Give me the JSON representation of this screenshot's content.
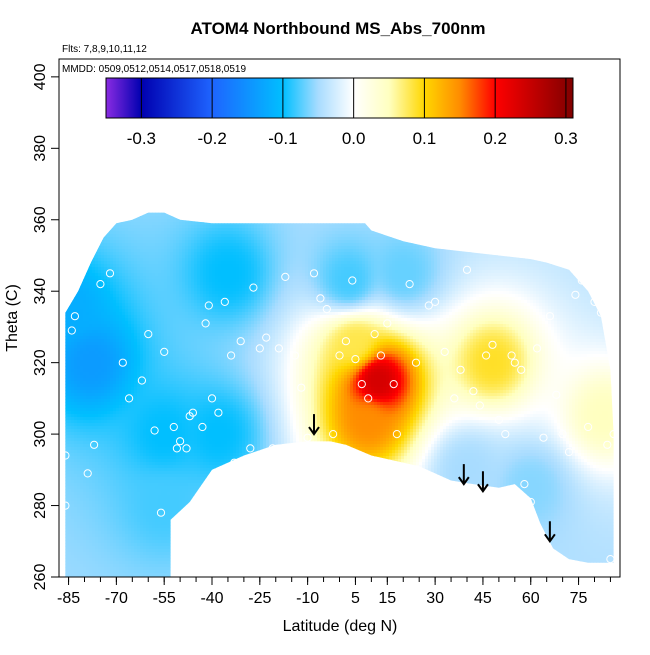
{
  "chart_data": {
    "type": "heatmap",
    "title": "ATOM4 Northbound MS_Abs_700nm",
    "subtitle_flights": "Flts: 7,8,9,10,11,12",
    "subtitle_dates": "MMDD: 0509,0512,0514,0517,0518,0519",
    "xlabel": "Latitude (deg N)",
    "ylabel": "Theta (C)",
    "xlim": [
      -88,
      88
    ],
    "ylim": [
      260,
      405
    ],
    "x_ticks": [
      -85,
      -70,
      -55,
      -40,
      -25,
      -10,
      5,
      15,
      30,
      45,
      60,
      75
    ],
    "y_ticks": [
      260,
      280,
      300,
      320,
      340,
      360,
      380,
      400
    ],
    "colorbar": {
      "ticks": [
        -0.3,
        -0.2,
        -0.1,
        0.0,
        0.1,
        0.2,
        0.3
      ],
      "tick_labels": [
        "-0.3",
        "-0.2",
        "-0.1",
        "0.0",
        "0.1",
        "0.2",
        "0.3"
      ],
      "range": [
        -0.35,
        0.31
      ],
      "stops": [
        {
          "v": -0.35,
          "color": "#8a2be2"
        },
        {
          "v": -0.3,
          "color": "#0000b0"
        },
        {
          "v": -0.2,
          "color": "#1e64ff"
        },
        {
          "v": -0.1,
          "color": "#00bfff"
        },
        {
          "v": -0.05,
          "color": "#a8dcff"
        },
        {
          "v": 0.0,
          "color": "#ffffff"
        },
        {
          "v": 0.05,
          "color": "#ffffc0"
        },
        {
          "v": 0.1,
          "color": "#ffd700"
        },
        {
          "v": 0.15,
          "color": "#ff8c00"
        },
        {
          "v": 0.2,
          "color": "#ff0000"
        },
        {
          "v": 0.31,
          "color": "#800000"
        }
      ]
    },
    "hotspots": [
      {
        "lat": 12,
        "theta": 315,
        "value": 0.24
      },
      {
        "lat": 9,
        "theta": 304,
        "value": 0.15
      },
      {
        "lat": 5,
        "theta": 325,
        "value": 0.08
      },
      {
        "lat": 48,
        "theta": 320,
        "value": 0.09
      },
      {
        "lat": 83,
        "theta": 305,
        "value": 0.05
      },
      {
        "lat": -78,
        "theta": 320,
        "value": -0.14
      },
      {
        "lat": -85,
        "theta": 335,
        "value": -0.12
      },
      {
        "lat": -55,
        "theta": 300,
        "value": -0.1
      },
      {
        "lat": -38,
        "theta": 300,
        "value": -0.1
      },
      {
        "lat": -35,
        "theta": 345,
        "value": -0.1
      },
      {
        "lat": 3,
        "theta": 343,
        "value": -0.08
      },
      {
        "lat": -55,
        "theta": 280,
        "value": -0.08
      },
      {
        "lat": 20,
        "theta": 345,
        "value": -0.07
      },
      {
        "lat": 40,
        "theta": 290,
        "value": -0.05
      },
      {
        "lat": 60,
        "theta": 285,
        "value": -0.06
      }
    ],
    "base_value": -0.05,
    "upper_boundary": [
      [
        -86,
        334
      ],
      [
        -82,
        340
      ],
      [
        -78,
        348
      ],
      [
        -74,
        355
      ],
      [
        -70,
        359
      ],
      [
        -65,
        360
      ],
      [
        -60,
        362
      ],
      [
        -55,
        362
      ],
      [
        -50,
        360
      ],
      [
        -40,
        359
      ],
      [
        -30,
        359
      ],
      [
        -20,
        359
      ],
      [
        -10,
        359
      ],
      [
        0,
        359
      ],
      [
        5,
        359
      ],
      [
        8,
        359
      ],
      [
        10,
        357
      ],
      [
        20,
        354
      ],
      [
        30,
        352
      ],
      [
        40,
        351
      ],
      [
        50,
        350
      ],
      [
        60,
        349
      ],
      [
        65,
        348
      ],
      [
        72,
        346
      ],
      [
        78,
        340
      ],
      [
        82,
        333
      ],
      [
        85,
        318
      ],
      [
        86,
        300
      ]
    ],
    "lower_boundary": [
      [
        -86,
        260
      ],
      [
        -53,
        260
      ],
      [
        -53,
        276
      ],
      [
        -47,
        281
      ],
      [
        -40,
        290
      ],
      [
        -30,
        294
      ],
      [
        -20,
        297
      ],
      [
        -10,
        298
      ],
      [
        -3,
        298
      ],
      [
        2,
        297
      ],
      [
        10,
        294
      ],
      [
        25,
        291
      ],
      [
        35,
        287
      ],
      [
        42,
        286
      ],
      [
        50,
        285
      ],
      [
        55,
        286
      ],
      [
        60,
        282
      ],
      [
        63,
        275
      ],
      [
        67,
        268
      ],
      [
        72,
        265
      ],
      [
        78,
        264
      ],
      [
        86,
        264
      ]
    ],
    "observation_points": [
      [
        -86,
        294
      ],
      [
        -86,
        280
      ],
      [
        -84,
        329
      ],
      [
        -83,
        333
      ],
      [
        -79,
        289
      ],
      [
        -77,
        297
      ],
      [
        -75,
        342
      ],
      [
        -72,
        345
      ],
      [
        -68,
        320
      ],
      [
        -66,
        310
      ],
      [
        -62,
        315
      ],
      [
        -60,
        328
      ],
      [
        -58,
        301
      ],
      [
        -56,
        278
      ],
      [
        -55,
        323
      ],
      [
        -52,
        302
      ],
      [
        -51,
        296
      ],
      [
        -50,
        298
      ],
      [
        -48,
        296
      ],
      [
        -47,
        305
      ],
      [
        -46,
        306
      ],
      [
        -44,
        280
      ],
      [
        -43,
        302
      ],
      [
        -42,
        331
      ],
      [
        -41,
        336
      ],
      [
        -40,
        310
      ],
      [
        -39,
        289
      ],
      [
        -38,
        306
      ],
      [
        -36,
        337
      ],
      [
        -34,
        322
      ],
      [
        -33,
        292
      ],
      [
        -31,
        326
      ],
      [
        -28,
        296
      ],
      [
        -27,
        341
      ],
      [
        -25,
        324
      ],
      [
        -23,
        327
      ],
      [
        -21,
        296
      ],
      [
        -19,
        324
      ],
      [
        -17,
        344
      ],
      [
        -14,
        322
      ],
      [
        -12,
        313
      ],
      [
        -10,
        299
      ],
      [
        -8,
        345
      ],
      [
        -6,
        338
      ],
      [
        -4,
        335
      ],
      [
        -2,
        300
      ],
      [
        0,
        322
      ],
      [
        2,
        326
      ],
      [
        4,
        343
      ],
      [
        5,
        321
      ],
      [
        7,
        314
      ],
      [
        9,
        310
      ],
      [
        11,
        328
      ],
      [
        13,
        322
      ],
      [
        15,
        331
      ],
      [
        17,
        314
      ],
      [
        18,
        300
      ],
      [
        22,
        342
      ],
      [
        24,
        320
      ],
      [
        28,
        336
      ],
      [
        30,
        337
      ],
      [
        33,
        323
      ],
      [
        36,
        310
      ],
      [
        38,
        318
      ],
      [
        40,
        346
      ],
      [
        42,
        312
      ],
      [
        44,
        308
      ],
      [
        46,
        322
      ],
      [
        48,
        325
      ],
      [
        50,
        304
      ],
      [
        52,
        300
      ],
      [
        54,
        322
      ],
      [
        55,
        320
      ],
      [
        57,
        318
      ],
      [
        58,
        286
      ],
      [
        60,
        281
      ],
      [
        62,
        324
      ],
      [
        64,
        299
      ],
      [
        66,
        333
      ],
      [
        68,
        311
      ],
      [
        70,
        300
      ],
      [
        72,
        295
      ],
      [
        74,
        339
      ],
      [
        76,
        343
      ],
      [
        78,
        302
      ],
      [
        80,
        337
      ],
      [
        82,
        334
      ],
      [
        84,
        297
      ],
      [
        85,
        265
      ],
      [
        86,
        300
      ]
    ],
    "arrows": [
      {
        "lat": -8,
        "theta": 300
      },
      {
        "lat": 39,
        "theta": 286
      },
      {
        "lat": 45,
        "theta": 284
      },
      {
        "lat": 66,
        "theta": 270
      }
    ]
  }
}
